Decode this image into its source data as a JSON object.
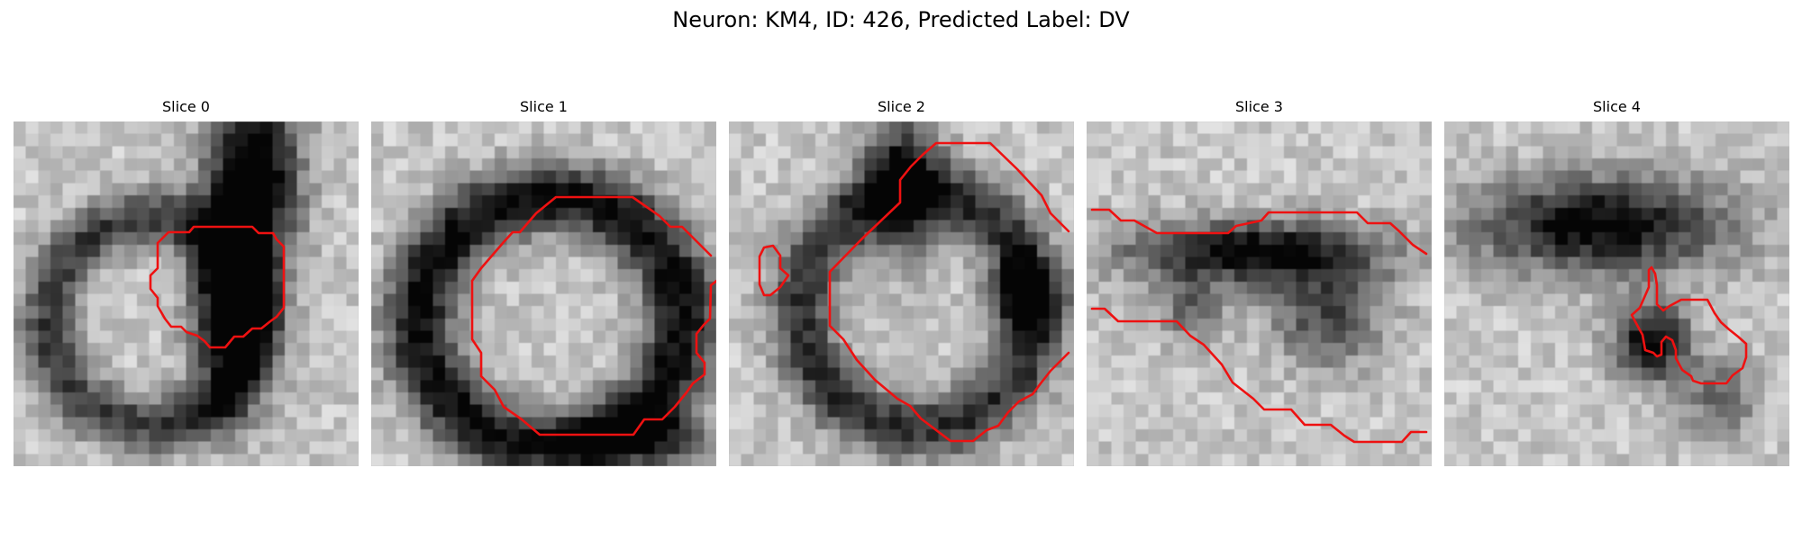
{
  "figure": {
    "title": "Neuron: KM4, ID: 426, Predicted Label: DV"
  },
  "colors": {
    "contour": "#ee1111",
    "background": "#ffffff"
  },
  "panels": [
    {
      "title": "Slice 0"
    },
    {
      "title": "Slice 1"
    },
    {
      "title": "Slice 2"
    },
    {
      "title": "Slice 3"
    },
    {
      "title": "Slice 4"
    }
  ]
}
